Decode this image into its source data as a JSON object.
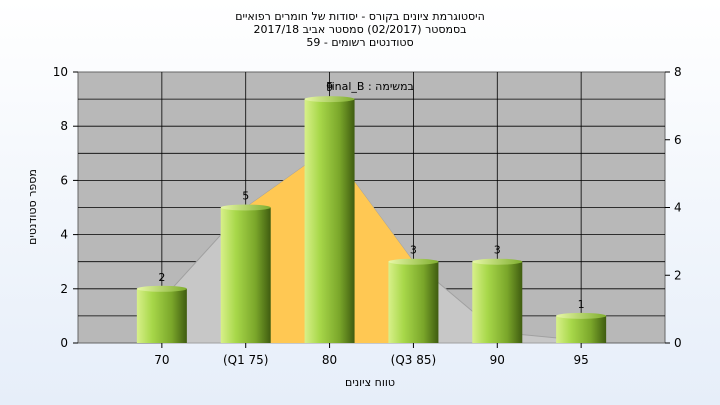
{
  "chart_data": {
    "type": "bar",
    "title": "היסטוגרמת ציונים בקורס - יסודות של חומרים רפואיים",
    "subtitle_lines": [
      "בסמסטר  (02/2017)  סמסטר אביב 2017/18",
      "סטודנטים רשומים - 59"
    ],
    "annotation": "Final_B : במשימה",
    "xlabel": "טווח ציונים",
    "ylabel": "מספר סטודנטים",
    "categories": [
      "70",
      "(Q1 75)",
      "80",
      "(Q3 85)",
      "90",
      "95"
    ],
    "values": [
      2,
      5,
      9,
      3,
      3,
      1
    ],
    "data_labels": [
      "2",
      "5",
      "9",
      "3",
      "3",
      "1"
    ],
    "ylim": [
      0,
      10
    ],
    "yticks": [
      0,
      2,
      4,
      6,
      8,
      10
    ],
    "y2lim": [
      0,
      8
    ],
    "y2ticks": [
      0,
      2,
      4,
      6,
      8
    ],
    "distribution_curve": {
      "x": [
        "70",
        "(Q1 75)",
        "80",
        "(Q3 85)",
        "90",
        "95"
      ],
      "y": [
        1.6,
        5.0,
        7.2,
        3.0,
        0.4,
        0.1
      ]
    },
    "grid": true,
    "colors": {
      "plot_bg": "#b8b8b8",
      "bar": "#8fc43a",
      "quartile_area": "#ffc853",
      "curve_area": "#c7c7c7"
    }
  }
}
